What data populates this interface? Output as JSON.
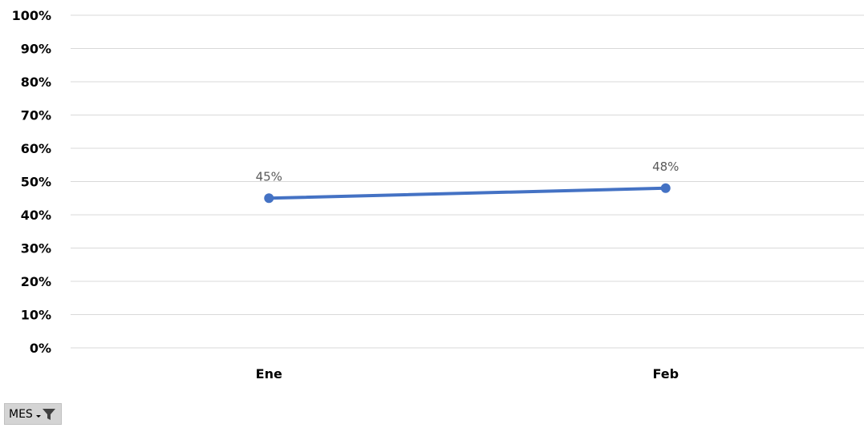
{
  "chart_data": {
    "type": "line",
    "categories": [
      "Ene",
      "Feb"
    ],
    "series": [
      {
        "values": [
          45,
          48
        ],
        "data_labels": [
          "45%",
          "48%"
        ]
      }
    ],
    "y_ticks": [
      "0%",
      "10%",
      "20%",
      "30%",
      "40%",
      "50%",
      "60%",
      "70%",
      "80%",
      "90%",
      "100%"
    ],
    "ylim": [
      0,
      100
    ],
    "grid": true,
    "colors": {
      "series": "#4472c4",
      "grid": "#d9d9d9"
    }
  },
  "filter": {
    "label": "MES"
  }
}
